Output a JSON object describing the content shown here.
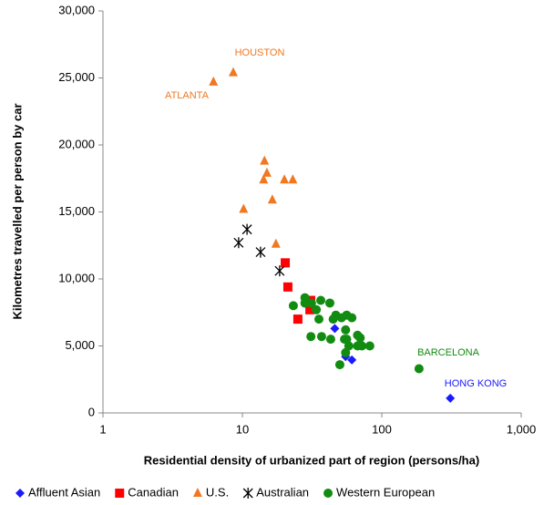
{
  "chart_data": {
    "type": "scatter",
    "xscale": "log",
    "x_label": "Residential density of urbanized part of region (persons/ha)",
    "y_label": "Kilometres travelled per person by car",
    "xlim": [
      1,
      1000
    ],
    "xticks": [
      1,
      10,
      100,
      {
        "value": 1000,
        "label": "1,000"
      }
    ],
    "ylim": [
      0,
      30000
    ],
    "yticks": [
      0,
      {
        "value": 5000,
        "label": "5,000"
      },
      {
        "value": 10000,
        "label": "10,000"
      },
      {
        "value": 15000,
        "label": "15,000"
      },
      {
        "value": 20000,
        "label": "20,000"
      },
      {
        "value": 25000,
        "label": "25,000"
      },
      {
        "value": 30000,
        "label": "30,000"
      }
    ],
    "series": [
      {
        "name": "Affluent Asian",
        "color": "#1a1aff",
        "marker": "diamond",
        "x": [
          46,
          55,
          61,
          310
        ],
        "values": [
          6300,
          4200,
          3950,
          1100
        ]
      },
      {
        "name": "Canadian",
        "color": "#ff0000",
        "marker": "square",
        "x": [
          20.3,
          21.2,
          30.9,
          30.5,
          25
        ],
        "values": [
          11200,
          9400,
          8400,
          7700,
          7000
        ]
      },
      {
        "name": "U.S.",
        "color": "#f07820",
        "marker": "triangle",
        "x": [
          6.2,
          8.6,
          10.2,
          14.4,
          15,
          14.2,
          16.4,
          20,
          23,
          17.4
        ],
        "values": [
          24700,
          25400,
          15200,
          18800,
          17900,
          17400,
          15900,
          17400,
          17400,
          12600
        ]
      },
      {
        "name": "Australian",
        "color": "#000000",
        "marker": "star",
        "x": [
          9.4,
          10.8,
          13.5,
          18.5
        ],
        "values": [
          12700,
          13700,
          12000,
          10600
        ]
      },
      {
        "name": "Western European",
        "color": "#118c11",
        "marker": "circle",
        "x": [
          185,
          28.1,
          28.1,
          23.2,
          31.3,
          36.5,
          42.4,
          33.9,
          35.4,
          46.8,
          51.4,
          56,
          61,
          44.8,
          55,
          43,
          54,
          67,
          67,
          56,
          72,
          82,
          58,
          55,
          50,
          31,
          37,
          70
        ],
        "values": [
          3300,
          8600,
          8200,
          8000,
          8200,
          8400,
          8200,
          7700,
          7000,
          7300,
          7100,
          7300,
          7100,
          7000,
          6200,
          5500,
          5500,
          5800,
          5000,
          5500,
          5000,
          5000,
          5000,
          4500,
          3600,
          5700,
          5700,
          5600
        ]
      }
    ],
    "annotations": [
      {
        "text": "HOUSTON",
        "color": "#f07820"
      },
      {
        "text": "ATLANTA",
        "color": "#f07820"
      },
      {
        "text": "BARCELONA",
        "color": "#118c11"
      },
      {
        "text": "HONG KONG",
        "color": "#1a1aff"
      }
    ],
    "legend": "bottom"
  }
}
